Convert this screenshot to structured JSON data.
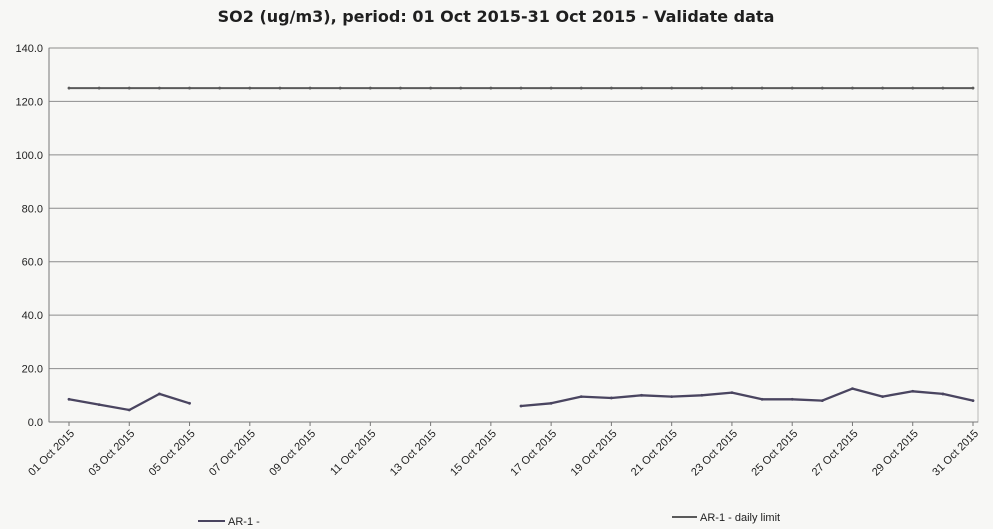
{
  "chart_data": {
    "type": "line",
    "title": "SO2 (ug/m3), period: 01 Oct 2015-31 Oct 2015 - Validate data",
    "xlabel": "",
    "ylabel": "",
    "ylim": [
      0,
      140
    ],
    "yticks": [
      "0.0",
      "20.0",
      "40.0",
      "60.0",
      "80.0",
      "100.0",
      "120.0",
      "140.0"
    ],
    "x": [
      "01 Oct 2015",
      "02 Oct 2015",
      "03 Oct 2015",
      "04 Oct 2015",
      "05 Oct 2015",
      "06 Oct 2015",
      "07 Oct 2015",
      "08 Oct 2015",
      "09 Oct 2015",
      "10 Oct 2015",
      "11 Oct 2015",
      "12 Oct 2015",
      "13 Oct 2015",
      "14 Oct 2015",
      "15 Oct 2015",
      "16 Oct 2015",
      "17 Oct 2015",
      "18 Oct 2015",
      "19 Oct 2015",
      "20 Oct 2015",
      "21 Oct 2015",
      "22 Oct 2015",
      "23 Oct 2015",
      "24 Oct 2015",
      "25 Oct 2015",
      "26 Oct 2015",
      "27 Oct 2015",
      "28 Oct 2015",
      "29 Oct 2015",
      "30 Oct 2015",
      "31 Oct 2015"
    ],
    "xticks": [
      "01 Oct 2015",
      "03 Oct 2015",
      "05 Oct 2015",
      "07 Oct 2015",
      "09 Oct 2015",
      "11 Oct 2015",
      "13 Oct 2015",
      "15 Oct 2015",
      "17 Oct 2015",
      "19 Oct 2015",
      "21 Oct 2015",
      "23 Oct 2015",
      "25 Oct 2015",
      "27 Oct 2015",
      "29 Oct 2015",
      "31 Oct 2015"
    ],
    "series": [
      {
        "name": "AR-1 -",
        "color": "#4a4560",
        "values": [
          8.5,
          6.5,
          4.5,
          10.5,
          7.0,
          null,
          null,
          null,
          null,
          null,
          null,
          null,
          null,
          null,
          null,
          6.0,
          7.0,
          9.5,
          9.0,
          10.0,
          9.5,
          10.0,
          11.0,
          8.5,
          8.5,
          8.0,
          12.5,
          9.5,
          11.5,
          10.5,
          8.0
        ]
      },
      {
        "name": "AR-1 - daily limit",
        "color": "#5a5a5a",
        "values": [
          125,
          125,
          125,
          125,
          125,
          125,
          125,
          125,
          125,
          125,
          125,
          125,
          125,
          125,
          125,
          125,
          125,
          125,
          125,
          125,
          125,
          125,
          125,
          125,
          125,
          125,
          125,
          125,
          125,
          125,
          125
        ]
      }
    ],
    "grid": true,
    "legend_position": "bottom"
  }
}
